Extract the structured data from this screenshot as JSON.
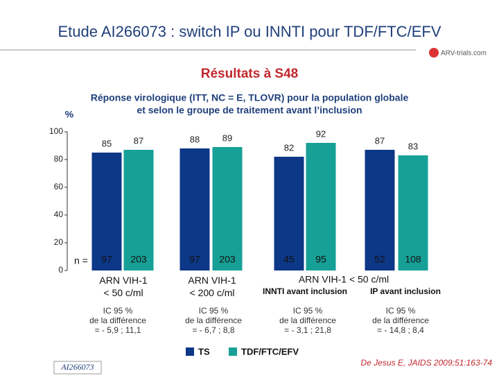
{
  "header": {
    "title": "Etude AI266073 : switch IP ou INNTI pour TDF/FTC/EFV",
    "logo": "ARV-trials.com"
  },
  "subtitle": "Résultats à S48",
  "chart_data": {
    "type": "bar",
    "title_lines": [
      "Réponse virologique (ITT, NC = E, TLOVR) pour la population globale",
      "et selon le groupe de traitement avant l’inclusion"
    ],
    "y_label": "%",
    "ylim": [
      0,
      100
    ],
    "yticks": [
      0,
      20,
      40,
      60,
      80,
      100
    ],
    "categories": [
      "ARN VIH-1\n< 50 c/ml",
      "ARN VIH-1\n< 200 c/ml",
      "INNTI avant inclusion",
      "IP avant inclusion"
    ],
    "group_label": "ARN VIH-1 < 50 c/ml",
    "n_label": "n =",
    "series": [
      {
        "name": "TS",
        "color": "#0d3787",
        "values": [
          85,
          88,
          82,
          87
        ],
        "n": [
          97,
          97,
          45,
          52
        ]
      },
      {
        "name": "TDF/FTC/EFV",
        "color": "#17a096",
        "values": [
          87,
          89,
          92,
          83
        ],
        "n": [
          203,
          203,
          95,
          108
        ]
      }
    ],
    "ci_labels": [
      "IC 95 %\nde la différence\n= - 5,9 ; 11,1",
      "IC 95 %\nde la différence\n= - 6,7 ; 8,8",
      "IC 95 %\nde la différence\n= - 3,1 ; 21,8",
      "IC 95 %\nde la différence\n= - 14,8 ; 8,4"
    ]
  },
  "footer": {
    "study": "AI266073",
    "citation": "De Jesus E, JAIDS 2009;51:163-74"
  }
}
